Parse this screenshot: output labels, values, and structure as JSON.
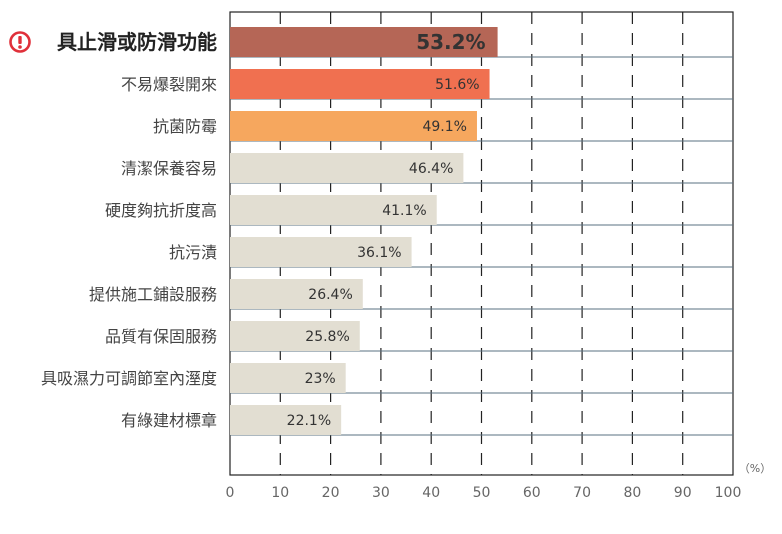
{
  "chart_data": {
    "type": "bar",
    "orientation": "horizontal",
    "categories": [
      "具止滑或防滑功能",
      "不易爆裂開來",
      "抗菌防霉",
      "清潔保養容易",
      "硬度夠抗折度高",
      "抗污漬",
      "提供施工鋪設服務",
      "品質有保固服務",
      "具吸濕力可調節室內溼度",
      "有綠建材標章"
    ],
    "values": [
      53.2,
      51.6,
      49.1,
      46.4,
      41.1,
      36.1,
      26.4,
      25.8,
      23,
      22.1
    ],
    "value_labels": [
      "53.2%",
      "51.6%",
      "49.1%",
      "46.4%",
      "41.1%",
      "36.1%",
      "26.4%",
      "25.8%",
      "23%",
      "22.1%"
    ],
    "bar_colors": [
      "#b56656",
      "#f07050",
      "#f6a75e",
      "#e2ded2",
      "#e2ded2",
      "#e2ded2",
      "#e2ded2",
      "#e2ded2",
      "#e2ded2",
      "#e2ded2"
    ],
    "highlight_icon": "exclamation-circle-icon",
    "highlight_color": "#e0303a",
    "xlim": [
      0,
      100
    ],
    "xticks": [
      "0",
      "10",
      "20",
      "30",
      "40",
      "50",
      "60",
      "70",
      "80",
      "90",
      "100"
    ],
    "xunit": "（%）",
    "grid": "dashed vertical",
    "xlabel": "",
    "ylabel": "",
    "title": ""
  }
}
